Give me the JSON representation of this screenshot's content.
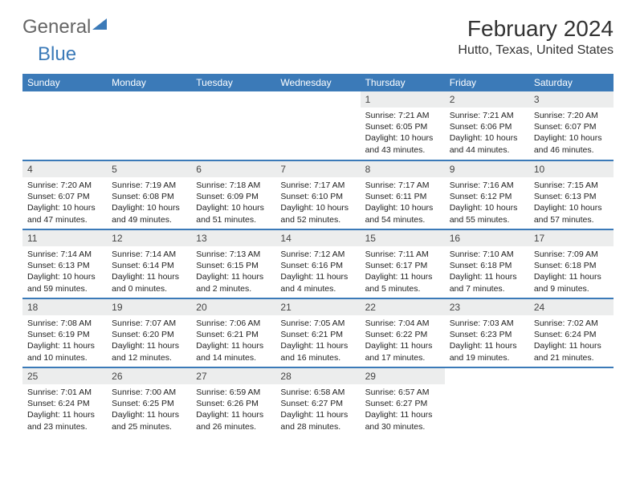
{
  "brand": {
    "part1": "General",
    "part2": "Blue"
  },
  "title": "February 2024",
  "location": "Hutto, Texas, United States",
  "colors": {
    "header_bg": "#3b7ab8",
    "header_text": "#ffffff",
    "daynum_bg": "#eceded",
    "border": "#3b7ab8",
    "text": "#222222"
  },
  "days_of_week": [
    "Sunday",
    "Monday",
    "Tuesday",
    "Wednesday",
    "Thursday",
    "Friday",
    "Saturday"
  ],
  "weeks": [
    [
      null,
      null,
      null,
      null,
      {
        "n": "1",
        "sr": "Sunrise: 7:21 AM",
        "ss": "Sunset: 6:05 PM",
        "dl": "Daylight: 10 hours and 43 minutes."
      },
      {
        "n": "2",
        "sr": "Sunrise: 7:21 AM",
        "ss": "Sunset: 6:06 PM",
        "dl": "Daylight: 10 hours and 44 minutes."
      },
      {
        "n": "3",
        "sr": "Sunrise: 7:20 AM",
        "ss": "Sunset: 6:07 PM",
        "dl": "Daylight: 10 hours and 46 minutes."
      }
    ],
    [
      {
        "n": "4",
        "sr": "Sunrise: 7:20 AM",
        "ss": "Sunset: 6:07 PM",
        "dl": "Daylight: 10 hours and 47 minutes."
      },
      {
        "n": "5",
        "sr": "Sunrise: 7:19 AM",
        "ss": "Sunset: 6:08 PM",
        "dl": "Daylight: 10 hours and 49 minutes."
      },
      {
        "n": "6",
        "sr": "Sunrise: 7:18 AM",
        "ss": "Sunset: 6:09 PM",
        "dl": "Daylight: 10 hours and 51 minutes."
      },
      {
        "n": "7",
        "sr": "Sunrise: 7:17 AM",
        "ss": "Sunset: 6:10 PM",
        "dl": "Daylight: 10 hours and 52 minutes."
      },
      {
        "n": "8",
        "sr": "Sunrise: 7:17 AM",
        "ss": "Sunset: 6:11 PM",
        "dl": "Daylight: 10 hours and 54 minutes."
      },
      {
        "n": "9",
        "sr": "Sunrise: 7:16 AM",
        "ss": "Sunset: 6:12 PM",
        "dl": "Daylight: 10 hours and 55 minutes."
      },
      {
        "n": "10",
        "sr": "Sunrise: 7:15 AM",
        "ss": "Sunset: 6:13 PM",
        "dl": "Daylight: 10 hours and 57 minutes."
      }
    ],
    [
      {
        "n": "11",
        "sr": "Sunrise: 7:14 AM",
        "ss": "Sunset: 6:13 PM",
        "dl": "Daylight: 10 hours and 59 minutes."
      },
      {
        "n": "12",
        "sr": "Sunrise: 7:14 AM",
        "ss": "Sunset: 6:14 PM",
        "dl": "Daylight: 11 hours and 0 minutes."
      },
      {
        "n": "13",
        "sr": "Sunrise: 7:13 AM",
        "ss": "Sunset: 6:15 PM",
        "dl": "Daylight: 11 hours and 2 minutes."
      },
      {
        "n": "14",
        "sr": "Sunrise: 7:12 AM",
        "ss": "Sunset: 6:16 PM",
        "dl": "Daylight: 11 hours and 4 minutes."
      },
      {
        "n": "15",
        "sr": "Sunrise: 7:11 AM",
        "ss": "Sunset: 6:17 PM",
        "dl": "Daylight: 11 hours and 5 minutes."
      },
      {
        "n": "16",
        "sr": "Sunrise: 7:10 AM",
        "ss": "Sunset: 6:18 PM",
        "dl": "Daylight: 11 hours and 7 minutes."
      },
      {
        "n": "17",
        "sr": "Sunrise: 7:09 AM",
        "ss": "Sunset: 6:18 PM",
        "dl": "Daylight: 11 hours and 9 minutes."
      }
    ],
    [
      {
        "n": "18",
        "sr": "Sunrise: 7:08 AM",
        "ss": "Sunset: 6:19 PM",
        "dl": "Daylight: 11 hours and 10 minutes."
      },
      {
        "n": "19",
        "sr": "Sunrise: 7:07 AM",
        "ss": "Sunset: 6:20 PM",
        "dl": "Daylight: 11 hours and 12 minutes."
      },
      {
        "n": "20",
        "sr": "Sunrise: 7:06 AM",
        "ss": "Sunset: 6:21 PM",
        "dl": "Daylight: 11 hours and 14 minutes."
      },
      {
        "n": "21",
        "sr": "Sunrise: 7:05 AM",
        "ss": "Sunset: 6:21 PM",
        "dl": "Daylight: 11 hours and 16 minutes."
      },
      {
        "n": "22",
        "sr": "Sunrise: 7:04 AM",
        "ss": "Sunset: 6:22 PM",
        "dl": "Daylight: 11 hours and 17 minutes."
      },
      {
        "n": "23",
        "sr": "Sunrise: 7:03 AM",
        "ss": "Sunset: 6:23 PM",
        "dl": "Daylight: 11 hours and 19 minutes."
      },
      {
        "n": "24",
        "sr": "Sunrise: 7:02 AM",
        "ss": "Sunset: 6:24 PM",
        "dl": "Daylight: 11 hours and 21 minutes."
      }
    ],
    [
      {
        "n": "25",
        "sr": "Sunrise: 7:01 AM",
        "ss": "Sunset: 6:24 PM",
        "dl": "Daylight: 11 hours and 23 minutes."
      },
      {
        "n": "26",
        "sr": "Sunrise: 7:00 AM",
        "ss": "Sunset: 6:25 PM",
        "dl": "Daylight: 11 hours and 25 minutes."
      },
      {
        "n": "27",
        "sr": "Sunrise: 6:59 AM",
        "ss": "Sunset: 6:26 PM",
        "dl": "Daylight: 11 hours and 26 minutes."
      },
      {
        "n": "28",
        "sr": "Sunrise: 6:58 AM",
        "ss": "Sunset: 6:27 PM",
        "dl": "Daylight: 11 hours and 28 minutes."
      },
      {
        "n": "29",
        "sr": "Sunrise: 6:57 AM",
        "ss": "Sunset: 6:27 PM",
        "dl": "Daylight: 11 hours and 30 minutes."
      },
      null,
      null
    ]
  ]
}
